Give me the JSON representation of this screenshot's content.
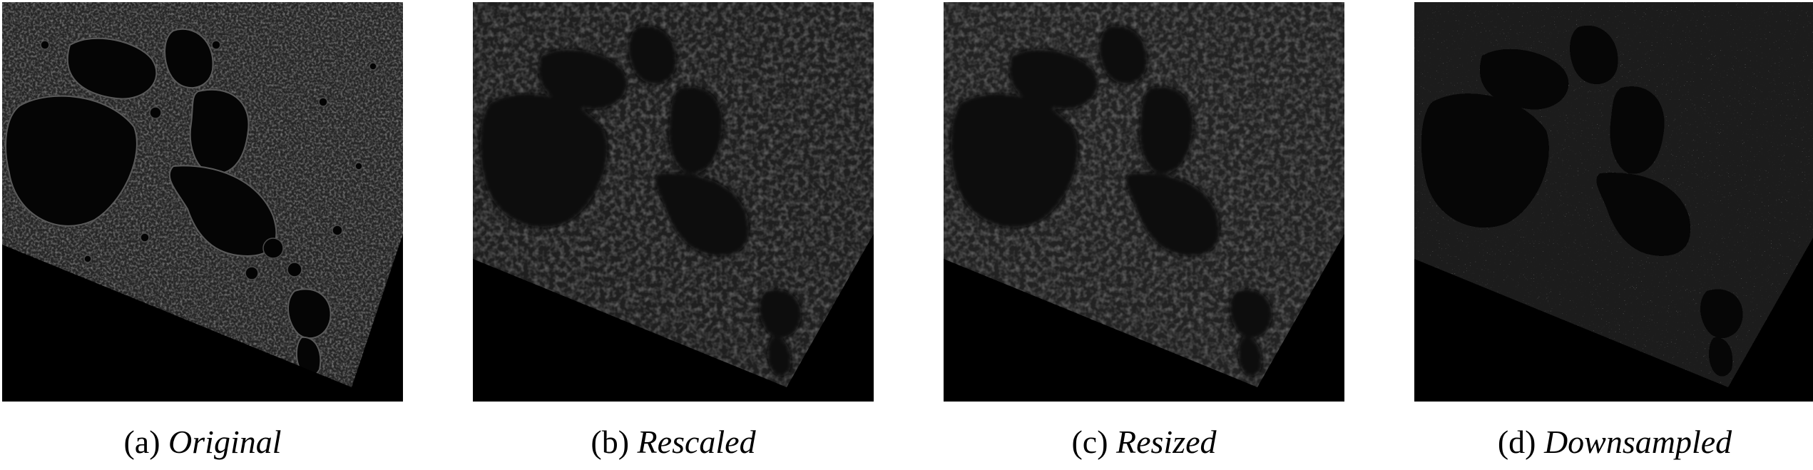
{
  "figure": {
    "panels": [
      {
        "id": "a",
        "label": "(a)",
        "name": "Original",
        "style": "fine"
      },
      {
        "id": "b",
        "label": "(b)",
        "name": "Rescaled",
        "style": "blur"
      },
      {
        "id": "c",
        "label": "(c)",
        "name": "Resized",
        "style": "blur"
      },
      {
        "id": "d",
        "label": "(d)",
        "name": "Downsampled",
        "style": "pixel"
      }
    ]
  }
}
